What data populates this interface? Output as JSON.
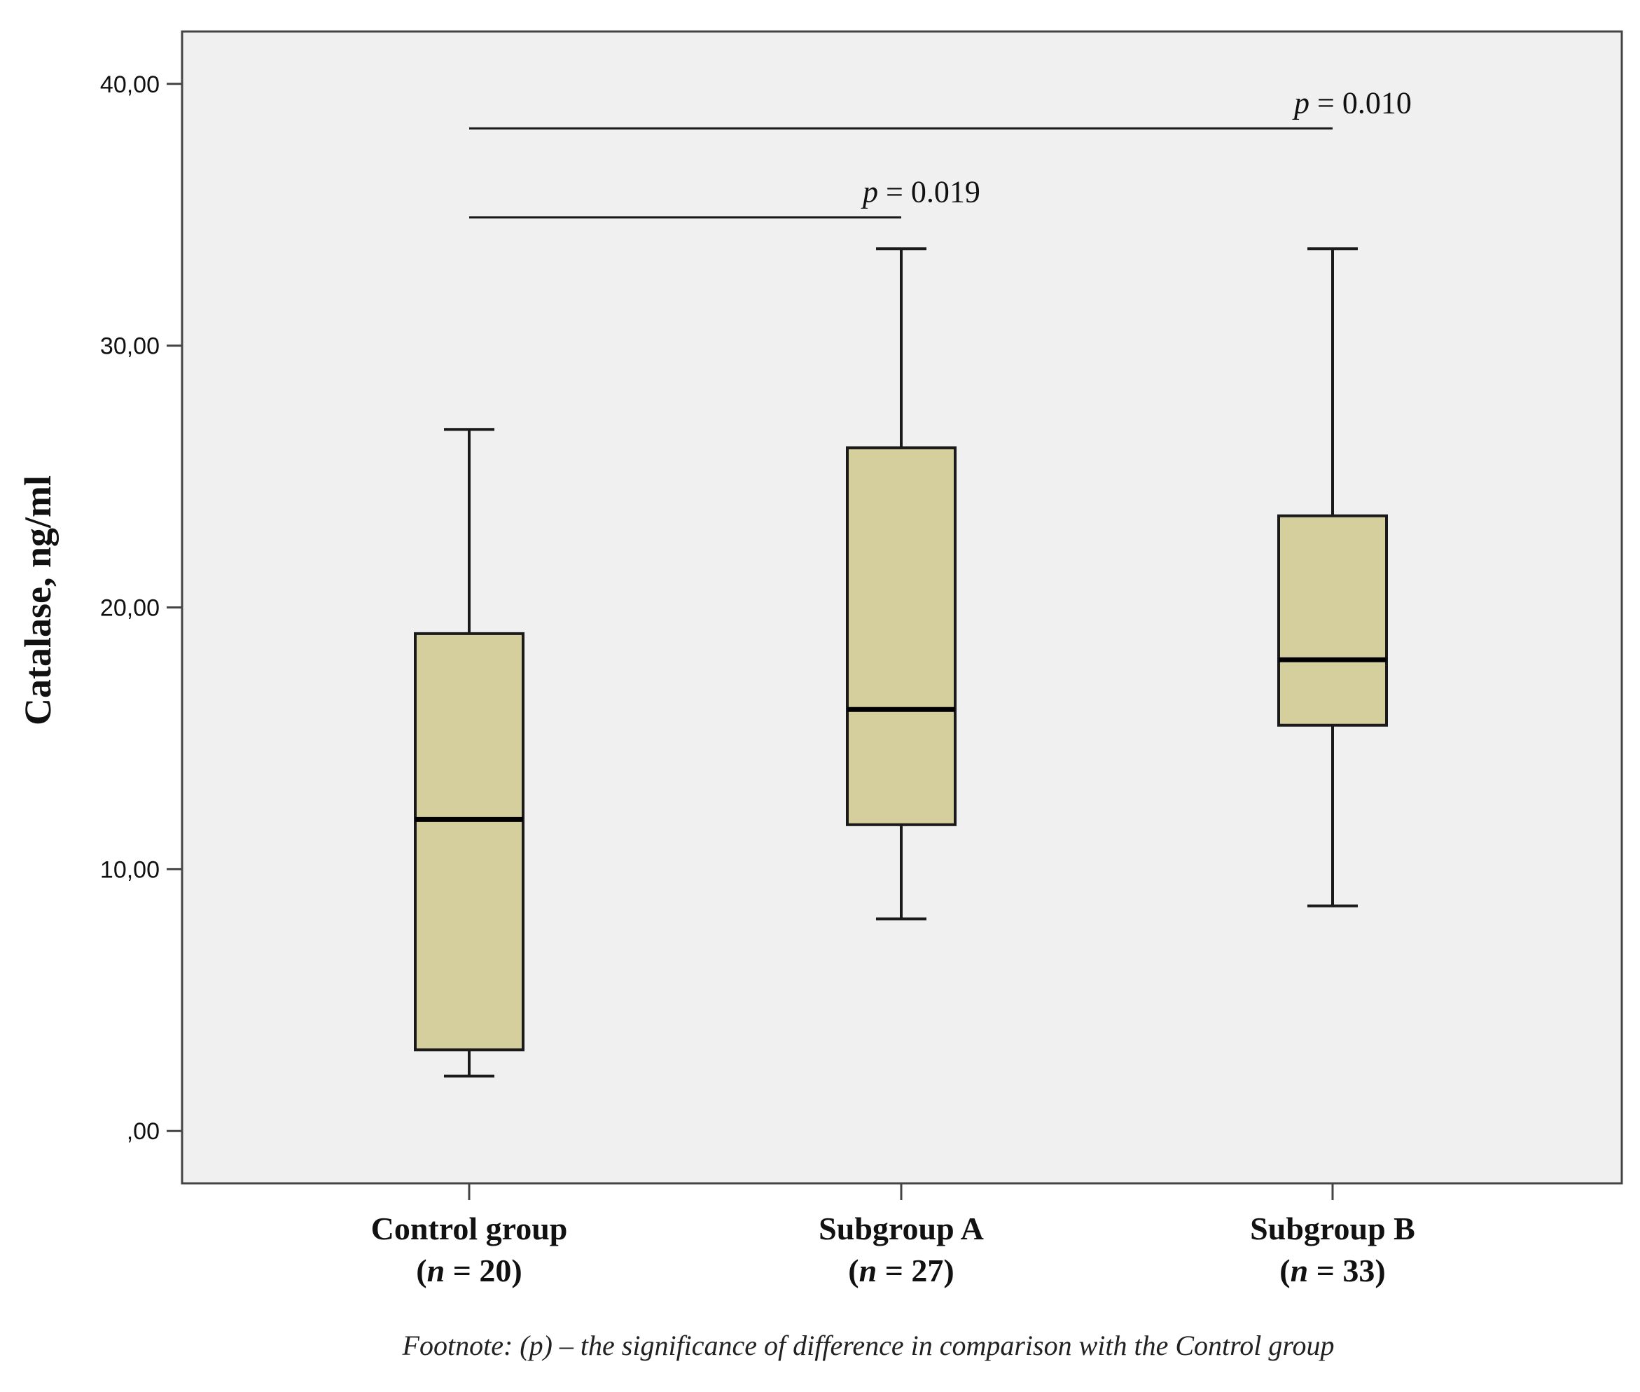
{
  "chart_data": {
    "type": "boxplot",
    "title": "",
    "ylabel": "Catalase, ng/ml",
    "xlabel": "",
    "ylim": [
      -2,
      42
    ],
    "yticks": [
      0,
      10,
      20,
      30,
      40
    ],
    "ytick_labels": [
      ",00",
      "10,00",
      "20,00",
      "30,00",
      "40,00"
    ],
    "groups": [
      {
        "name": "Control group",
        "n_label": "(n = 20)",
        "n_prefix": "(",
        "n_italic": "n",
        "n_suffix": " = 20)",
        "min": 2.1,
        "q1": 3.1,
        "median": 11.9,
        "q3": 19.0,
        "max": 26.8
      },
      {
        "name": "Subgroup A",
        "n_label": "(n = 27)",
        "n_prefix": "(",
        "n_italic": "n",
        "n_suffix": " = 27)",
        "min": 8.1,
        "q1": 11.7,
        "median": 16.1,
        "q3": 26.1,
        "max": 33.7
      },
      {
        "name": "Subgroup B",
        "n_label": "(n = 33)",
        "n_prefix": "(",
        "n_italic": "n",
        "n_suffix": " = 33)",
        "min": 8.6,
        "q1": 15.5,
        "median": 18.0,
        "q3": 23.5,
        "max": 33.7
      }
    ],
    "significance": [
      {
        "from": 0,
        "to": 2,
        "y": 38.3,
        "label": "p = 0.010",
        "p_italic": "p",
        "p_rest": " = 0.010"
      },
      {
        "from": 0,
        "to": 1,
        "y": 34.9,
        "label": "p = 0.019",
        "p_italic": "p",
        "p_rest": " = 0.019"
      }
    ],
    "colors": {
      "box_fill": "#d5cf9e",
      "plot_bg": "#f0f0f0",
      "stroke": "#1a1a1a"
    },
    "grid": false
  },
  "footnote": "Footnote:  (p) – the significance of difference in comparison with the Control group"
}
